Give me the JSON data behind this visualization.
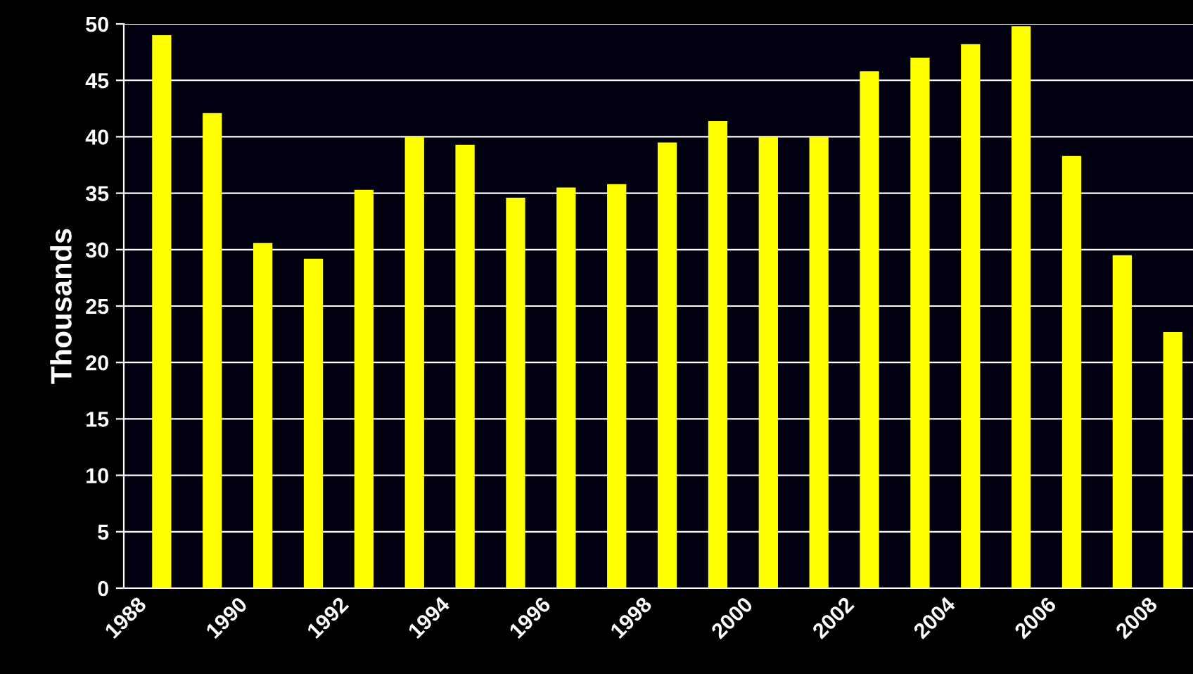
{
  "chart_data": {
    "type": "bar",
    "ylabel": "Thousands",
    "categories": [
      "1988",
      null,
      "1990",
      null,
      "1992",
      null,
      "1994",
      null,
      "1996",
      null,
      "1998",
      null,
      "2000",
      null,
      "2002",
      null,
      "2004",
      null,
      "2006",
      null,
      "2008"
    ],
    "values": [
      49,
      42.1,
      30.6,
      29.2,
      35.3,
      40,
      39.3,
      34.6,
      35.5,
      35.8,
      39.5,
      41.4,
      40,
      40,
      45.8,
      47,
      48.2,
      49.8,
      38.3,
      29.5,
      22.7
    ],
    "color": "#ffff00",
    "ylim": [
      0,
      50
    ],
    "yticks": [
      0,
      5,
      10,
      15,
      20,
      25,
      30,
      35,
      40,
      45,
      50
    ],
    "grid": "y"
  }
}
